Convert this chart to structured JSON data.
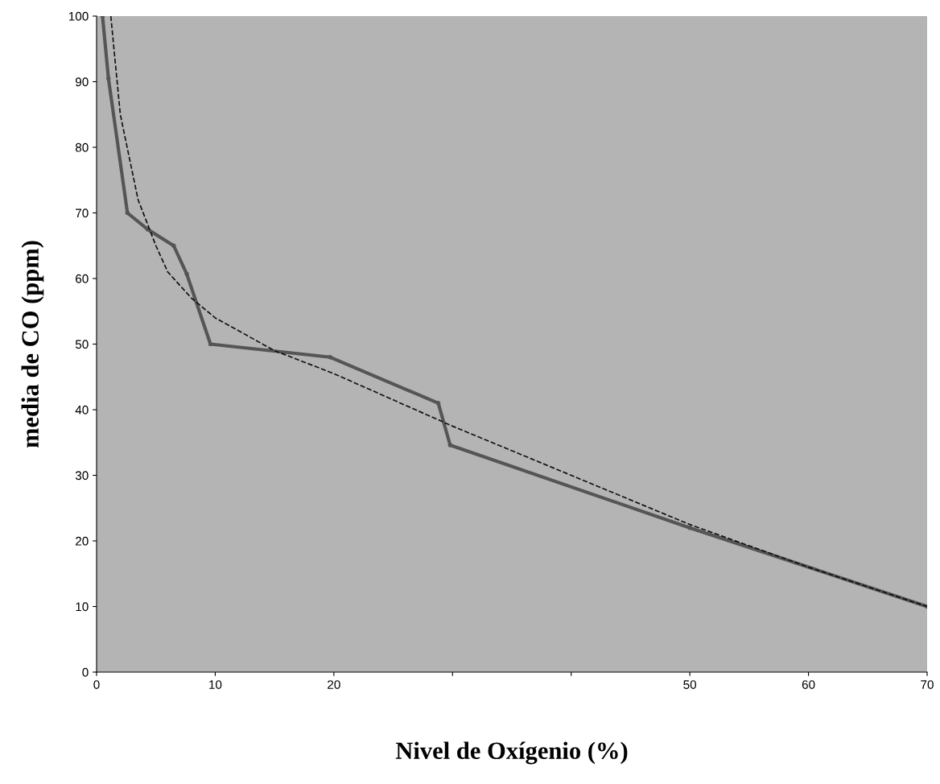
{
  "chart_data": {
    "type": "line",
    "xlabel": "Nivel de Oxígenio (%)",
    "ylabel": "media de CO (ppm)",
    "xlim": [
      0,
      70
    ],
    "ylim": [
      0,
      100
    ],
    "xticks": [
      0,
      10,
      20,
      {
        "value": 30,
        "label": null
      },
      {
        "value": 40,
        "label": null
      },
      50,
      60,
      70
    ],
    "yticks": [
      0,
      10,
      20,
      30,
      40,
      50,
      60,
      70,
      80,
      90,
      100
    ],
    "legend": false,
    "series": [
      {
        "color": "#555555",
        "marker": "circle",
        "line_style": "solid",
        "x": [
          0.5,
          1.0,
          2.6,
          4.3,
          6.5,
          7.6,
          9.6,
          19.7,
          28.8,
          29.8,
          50,
          70
        ],
        "values": [
          100,
          90.5,
          70,
          67.5,
          65,
          60.7,
          50,
          48,
          41,
          34.6,
          22,
          10
        ]
      },
      {
        "color": "#111111",
        "marker": "none",
        "line_style": "dashed",
        "x": [
          1.2,
          2.0,
          3.5,
          5,
          6,
          8,
          10,
          15,
          20,
          30,
          40,
          50,
          60,
          70
        ],
        "values": [
          100,
          85,
          72,
          65,
          61,
          57,
          54,
          49,
          45.5,
          37.5,
          30,
          22.5,
          16,
          10
        ]
      }
    ]
  }
}
